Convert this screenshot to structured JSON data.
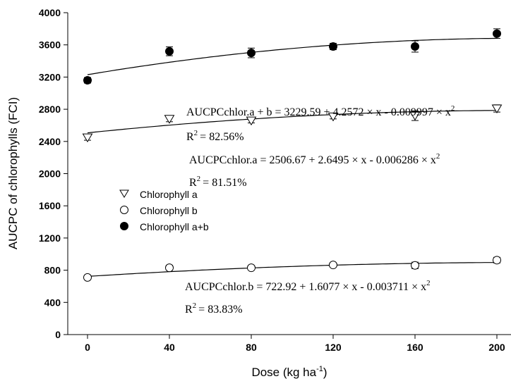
{
  "chart_data": {
    "type": "scatter",
    "xlabel": "Dose (kg ha",
    "xlabel_sup": "-1",
    "xlabel_close": ")",
    "ylabel": "AUCPC of chlorophylls (FCI)",
    "xlim": [
      -10,
      210
    ],
    "ylim": [
      0,
      4000
    ],
    "x_ticks": [
      0,
      40,
      80,
      120,
      160,
      200
    ],
    "y_ticks": [
      0,
      400,
      800,
      1200,
      1600,
      2000,
      2400,
      2800,
      3200,
      3600,
      4000
    ],
    "series": [
      {
        "name": "Chlorophyll a",
        "marker": "triangle-down-open",
        "x": [
          0,
          40,
          80,
          120,
          160,
          200
        ],
        "y": [
          2450,
          2680,
          2660,
          2710,
          2720,
          2810
        ],
        "err": [
          35,
          35,
          30,
          30,
          60,
          45
        ],
        "fit": {
          "a": 2506.67,
          "b": 2.6495,
          "c": -0.006286
        }
      },
      {
        "name": "Chlorophyll b",
        "marker": "circle-open",
        "x": [
          0,
          40,
          80,
          120,
          160,
          200
        ],
        "y": [
          710,
          830,
          830,
          865,
          860,
          925
        ],
        "err": [
          25,
          30,
          20,
          20,
          40,
          35
        ],
        "fit": {
          "a": 722.92,
          "b": 1.6077,
          "c": -0.003711
        }
      },
      {
        "name": "Chlorophyll a+b",
        "marker": "circle-filled",
        "x": [
          0,
          40,
          80,
          120,
          160,
          200
        ],
        "y": [
          3160,
          3520,
          3500,
          3580,
          3580,
          3740
        ],
        "err": [
          35,
          55,
          60,
          40,
          70,
          60
        ],
        "fit": {
          "a": 3229.59,
          "b": 4.2572,
          "c": -0.009997
        }
      }
    ],
    "annotations": [
      {
        "equation": "AUCPCchlor.a + b = 3229.59 + 4.2572 × x - 0.009997 × x",
        "r2_value": "= 82.56%"
      },
      {
        "equation": "AUCPCchlor.a = 2506.67 + 2.6495 × x - 0.006286 × x",
        "r2_value": "= 81.51%"
      },
      {
        "equation": "AUCPCchlor.b = 722.92 + 1.6077 × x - 0.003711 × x",
        "r2_value": "= 83.83%"
      }
    ],
    "eq_superscript": "2",
    "r2_prefix": "R",
    "legend": {
      "position": "center-left"
    }
  }
}
